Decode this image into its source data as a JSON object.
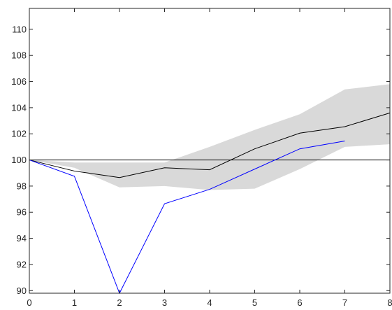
{
  "chart_data": {
    "type": "line",
    "title": "",
    "xlabel": "",
    "ylabel": "",
    "xlim": [
      0,
      8
    ],
    "ylim": [
      89.8,
      111.6
    ],
    "x_ticks": [
      0,
      1,
      2,
      3,
      4,
      5,
      6,
      7,
      8
    ],
    "y_ticks": [
      90,
      92,
      94,
      96,
      98,
      100,
      102,
      104,
      106,
      108,
      110
    ],
    "grid": false,
    "legend": "none",
    "band": {
      "x": [
        0,
        1,
        2,
        3,
        4,
        5,
        6,
        7,
        8
      ],
      "lower": [
        100,
        99.4,
        97.9,
        98.0,
        97.7,
        97.8,
        99.3,
        101.0,
        101.2
      ],
      "upper": [
        100,
        99.8,
        99.8,
        99.8,
        101.0,
        102.3,
        103.5,
        105.4,
        105.8
      ],
      "color": "#d9d9d9"
    },
    "series": [
      {
        "x": [
          0,
          1,
          2,
          3,
          4,
          5,
          6,
          7,
          8
        ],
        "values": [
          100,
          99.15,
          98.65,
          99.4,
          99.25,
          100.85,
          102.05,
          102.55,
          103.6
        ],
        "color": "#000000"
      },
      {
        "x": [
          0,
          1,
          2,
          3,
          4,
          5,
          6,
          7
        ],
        "values": [
          100,
          98.75,
          89.8,
          96.65,
          97.75,
          99.3,
          100.85,
          101.45
        ],
        "color": "#0000ff"
      }
    ],
    "reference_line": {
      "y": 100,
      "color": "#262626"
    }
  }
}
